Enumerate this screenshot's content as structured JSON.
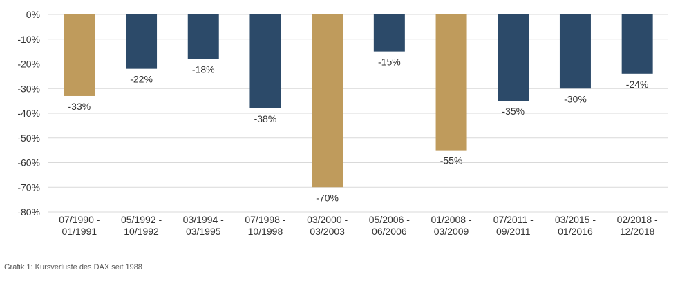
{
  "chart_data": {
    "type": "bar",
    "categories": [
      [
        "07/1990 -",
        "01/1991"
      ],
      [
        "05/1992 -",
        "10/1992"
      ],
      [
        "03/1994 -",
        "03/1995"
      ],
      [
        "07/1998 -",
        "10/1998"
      ],
      [
        "03/2000 -",
        "03/2003"
      ],
      [
        "05/2006 -",
        "06/2006"
      ],
      [
        "01/2008 -",
        "03/2009"
      ],
      [
        "07/2011 -",
        "09/2011"
      ],
      [
        "03/2015 -",
        "01/2016"
      ],
      [
        "02/2018 -",
        "12/2018"
      ]
    ],
    "values": [
      -33,
      -22,
      -18,
      -38,
      -70,
      -15,
      -55,
      -35,
      -30,
      -24
    ],
    "data_labels": [
      "-33%",
      "-22%",
      "-18%",
      "-38%",
      "-70%",
      "-15%",
      "-55%",
      "-35%",
      "-30%",
      "-24%"
    ],
    "highlight": [
      true,
      false,
      false,
      false,
      true,
      false,
      true,
      false,
      false,
      false
    ],
    "colors": {
      "highlight": "#bf9b5c",
      "default": "#2c4a69",
      "grid": "#d9d9d9"
    },
    "ylim": [
      -80,
      0
    ],
    "yticks": [
      0,
      -10,
      -20,
      -30,
      -40,
      -50,
      -60,
      -70,
      -80
    ],
    "ytick_labels": [
      "0%",
      "-10%",
      "-20%",
      "-30%",
      "-40%",
      "-50%",
      "-60%",
      "-70%",
      "-80%"
    ],
    "grid": true,
    "legend": "none"
  },
  "caption": "Grafik 1: Kursverluste des DAX seit 1988"
}
